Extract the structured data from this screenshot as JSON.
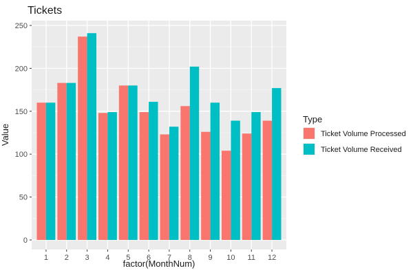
{
  "chart_data": {
    "type": "bar",
    "title": "Tickets",
    "xlabel": "factor(MonthNum)",
    "ylabel": "Value",
    "categories": [
      "1",
      "2",
      "3",
      "4",
      "5",
      "6",
      "7",
      "8",
      "9",
      "10",
      "11",
      "12"
    ],
    "series": [
      {
        "name": "Ticket Volume Processed",
        "color": "#F8766D",
        "values": [
          160,
          183,
          237,
          148,
          180,
          149,
          123,
          156,
          126,
          104,
          124,
          139
        ]
      },
      {
        "name": "Ticket Volume Received",
        "color": "#00BFC4",
        "values": [
          160,
          183,
          241,
          149,
          180,
          161,
          132,
          202,
          160,
          139,
          149,
          177
        ]
      }
    ],
    "ylim": [
      0,
      250
    ],
    "yticks": [
      0,
      50,
      100,
      150,
      200,
      250
    ],
    "grid": true,
    "panel_background": "#EBEBEB",
    "legend": {
      "title": "Type",
      "position": "right"
    }
  }
}
